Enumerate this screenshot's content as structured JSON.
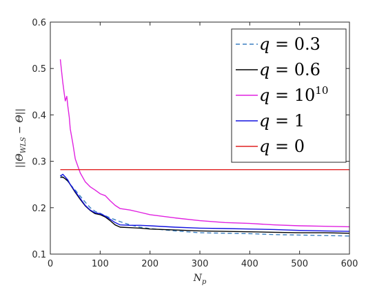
{
  "chart_data": {
    "type": "line",
    "xlabel": "N_p",
    "ylabel": "||Θ_WLS − Θ||",
    "xlim": [
      0,
      600
    ],
    "ylim": [
      0.1,
      0.6
    ],
    "xticks": [
      "0",
      "100",
      "200",
      "300",
      "400",
      "500",
      "600"
    ],
    "yticks": [
      "0.1",
      "0.2",
      "0.3",
      "0.4",
      "0.5",
      "0.6"
    ],
    "grid": false,
    "legend_position": "top-right",
    "series": [
      {
        "name": "q = 0.3",
        "color": "#3a7fc1",
        "dash": "dashed",
        "x": [
          20,
          25,
          30,
          35,
          40,
          50,
          60,
          70,
          80,
          90,
          100,
          110,
          120,
          130,
          140,
          160,
          180,
          200,
          250,
          300,
          350,
          400,
          450,
          500,
          550,
          600
        ],
        "y": [
          0.27,
          0.265,
          0.262,
          0.257,
          0.25,
          0.238,
          0.225,
          0.212,
          0.2,
          0.192,
          0.188,
          0.183,
          0.178,
          0.174,
          0.17,
          0.163,
          0.158,
          0.155,
          0.15,
          0.146,
          0.145,
          0.144,
          0.142,
          0.141,
          0.14,
          0.139
        ]
      },
      {
        "name": "q = 0.6",
        "color": "#000000",
        "dash": "solid",
        "x": [
          20,
          25,
          30,
          35,
          40,
          50,
          60,
          70,
          80,
          90,
          100,
          110,
          120,
          130,
          140,
          160,
          180,
          200,
          250,
          300,
          350,
          400,
          450,
          500,
          550,
          600
        ],
        "y": [
          0.265,
          0.266,
          0.262,
          0.258,
          0.25,
          0.233,
          0.218,
          0.204,
          0.194,
          0.187,
          0.185,
          0.18,
          0.172,
          0.163,
          0.158,
          0.157,
          0.156,
          0.154,
          0.152,
          0.15,
          0.149,
          0.148,
          0.147,
          0.146,
          0.146,
          0.145
        ]
      },
      {
        "name": "q = 10^10",
        "color": "#e020e0",
        "dash": "solid",
        "x": [
          20,
          22,
          25,
          28,
          30,
          33,
          35,
          38,
          40,
          45,
          50,
          55,
          60,
          70,
          80,
          90,
          100,
          110,
          120,
          130,
          140,
          160,
          180,
          200,
          250,
          300,
          350,
          400,
          450,
          500,
          550,
          600
        ],
        "y": [
          0.52,
          0.5,
          0.47,
          0.445,
          0.43,
          0.44,
          0.42,
          0.395,
          0.37,
          0.34,
          0.305,
          0.29,
          0.275,
          0.256,
          0.245,
          0.238,
          0.23,
          0.226,
          0.215,
          0.205,
          0.198,
          0.195,
          0.19,
          0.185,
          0.178,
          0.172,
          0.168,
          0.166,
          0.163,
          0.161,
          0.16,
          0.159
        ]
      },
      {
        "name": "q = 1",
        "color": "#1212e0",
        "dash": "solid",
        "x": [
          20,
          25,
          30,
          35,
          40,
          50,
          60,
          70,
          80,
          90,
          100,
          110,
          120,
          130,
          140,
          160,
          180,
          200,
          250,
          300,
          350,
          400,
          450,
          500,
          550,
          600
        ],
        "y": [
          0.268,
          0.272,
          0.266,
          0.26,
          0.25,
          0.235,
          0.22,
          0.205,
          0.195,
          0.189,
          0.187,
          0.182,
          0.175,
          0.168,
          0.163,
          0.162,
          0.162,
          0.161,
          0.158,
          0.156,
          0.155,
          0.154,
          0.153,
          0.151,
          0.15,
          0.149
        ]
      },
      {
        "name": "q = 0",
        "color": "#e02020",
        "dash": "solid",
        "x": [
          20,
          600
        ],
        "y": [
          0.282,
          0.282
        ]
      }
    ]
  }
}
